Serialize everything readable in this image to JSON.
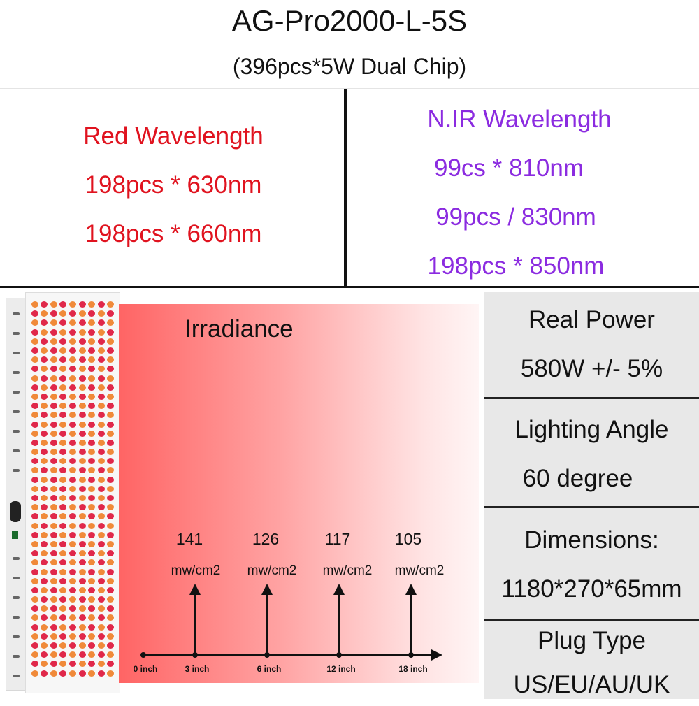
{
  "header": {
    "title": "AG-Pro2000-L-5S",
    "subtitle": "(396pcs*5W Dual Chip)"
  },
  "red_wavelength": {
    "heading": "Red Wavelength",
    "items": [
      "198pcs * 630nm",
      "198pcs * 660nm"
    ],
    "color": "#e0131f"
  },
  "nir_wavelength": {
    "heading": "N.IR Wavelength",
    "items": [
      "99cs * 810nm",
      "99pcs / 830nm",
      "198pcs * 850nm"
    ],
    "color": "#8b2be0"
  },
  "irradiance": {
    "title": "Irradiance",
    "unit": "mw/cm2",
    "distances": [
      "0 inch",
      "3 inch",
      "6 inch",
      "12 inch",
      "18 inch"
    ],
    "readings": [
      {
        "distance": "3 inch",
        "value": "141",
        "unit": "mw/cm2"
      },
      {
        "distance": "6 inch",
        "value": "126",
        "unit": "mw/cm2"
      },
      {
        "distance": "12 inch",
        "value": "117",
        "unit": "mw/cm2"
      },
      {
        "distance": "18 inch",
        "value": "105",
        "unit": "mw/cm2"
      }
    ]
  },
  "specs": [
    {
      "label": "Real Power",
      "value": "580W +/- 5%"
    },
    {
      "label": "Lighting Angle",
      "value": "60 degree"
    },
    {
      "label": "Dimensions:",
      "value": "1180*270*65mm"
    },
    {
      "label": "Plug Type",
      "value": "US/EU/AU/UK"
    }
  ],
  "product_image": {
    "icon": "led-panel-icon",
    "led_colors": [
      "#f08a3a",
      "#e0284a"
    ]
  }
}
